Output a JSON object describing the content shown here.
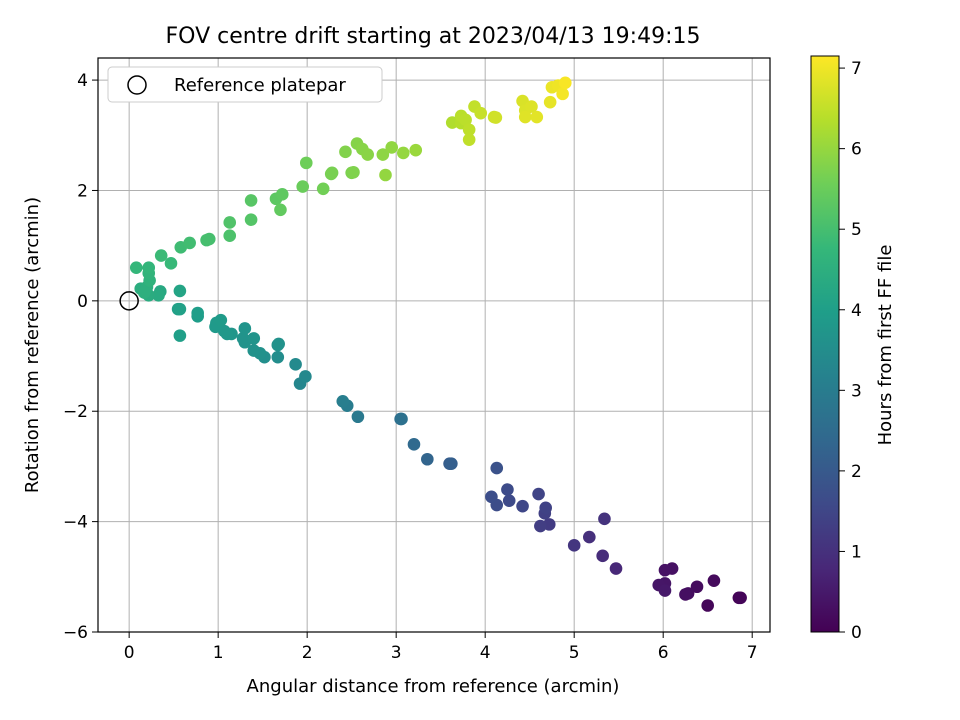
{
  "chart_data": {
    "type": "scatter",
    "title": "FOV centre drift starting at 2023/04/13 19:49:15",
    "xlabel": "Angular distance from reference (arcmin)",
    "ylabel": "Rotation from reference (arcmin)",
    "xlim": [
      -0.35,
      7.2
    ],
    "ylim": [
      -6,
      4.4
    ],
    "xticks": [
      0,
      1,
      2,
      3,
      4,
      5,
      6,
      7
    ],
    "yticks": [
      -6,
      -4,
      -2,
      0,
      2,
      4
    ],
    "grid": true,
    "legend": {
      "placement": "top-left",
      "entries": [
        "Reference platepar"
      ]
    },
    "reference_point": {
      "x": 0,
      "y": 0
    },
    "colorbar": {
      "label": "Hours from first FF file",
      "colormap": "viridis",
      "range": [
        0,
        7.15
      ],
      "ticks": [
        0,
        1,
        2,
        3,
        4,
        5,
        6,
        7
      ]
    },
    "colormap_stops": [
      "#440154",
      "#482878",
      "#3e4a89",
      "#31688e",
      "#26828e",
      "#1f9e89",
      "#35b779",
      "#6ece58",
      "#b5de2b",
      "#fde725"
    ],
    "points": [
      {
        "x": 6.85,
        "y": -5.38,
        "t": 0.05
      },
      {
        "x": 6.87,
        "y": -5.38,
        "t": 0.08
      },
      {
        "x": 6.5,
        "y": -5.52,
        "t": 0.12
      },
      {
        "x": 6.57,
        "y": -5.07,
        "t": 0.18
      },
      {
        "x": 6.38,
        "y": -5.18,
        "t": 0.22
      },
      {
        "x": 6.28,
        "y": -5.3,
        "t": 0.25
      },
      {
        "x": 6.25,
        "y": -5.32,
        "t": 0.28
      },
      {
        "x": 6.1,
        "y": -4.85,
        "t": 0.32
      },
      {
        "x": 6.02,
        "y": -4.88,
        "t": 0.35
      },
      {
        "x": 6.02,
        "y": -5.12,
        "t": 0.4
      },
      {
        "x": 5.95,
        "y": -5.15,
        "t": 0.43
      },
      {
        "x": 6.02,
        "y": -5.25,
        "t": 0.47
      },
      {
        "x": 5.47,
        "y": -4.85,
        "t": 0.8
      },
      {
        "x": 5.32,
        "y": -4.62,
        "t": 0.9
      },
      {
        "x": 5.17,
        "y": -4.28,
        "t": 0.98
      },
      {
        "x": 5.34,
        "y": -3.95,
        "t": 1.05
      },
      {
        "x": 5.0,
        "y": -4.43,
        "t": 1.12
      },
      {
        "x": 4.72,
        "y": -4.05,
        "t": 1.25
      },
      {
        "x": 4.62,
        "y": -4.08,
        "t": 1.3
      },
      {
        "x": 4.67,
        "y": -3.85,
        "t": 1.35
      },
      {
        "x": 4.68,
        "y": -3.75,
        "t": 1.4
      },
      {
        "x": 4.6,
        "y": -3.5,
        "t": 1.45
      },
      {
        "x": 4.42,
        "y": -3.72,
        "t": 1.52
      },
      {
        "x": 4.27,
        "y": -3.62,
        "t": 1.58
      },
      {
        "x": 4.25,
        "y": -3.42,
        "t": 1.62
      },
      {
        "x": 4.13,
        "y": -3.7,
        "t": 1.66
      },
      {
        "x": 4.07,
        "y": -3.55,
        "t": 1.7
      },
      {
        "x": 4.13,
        "y": -3.03,
        "t": 1.8
      },
      {
        "x": 3.6,
        "y": -2.95,
        "t": 2.1
      },
      {
        "x": 3.62,
        "y": -2.95,
        "t": 2.15
      },
      {
        "x": 3.35,
        "y": -2.87,
        "t": 2.3
      },
      {
        "x": 3.2,
        "y": -2.6,
        "t": 2.45
      },
      {
        "x": 3.05,
        "y": -2.14,
        "t": 2.6
      },
      {
        "x": 3.06,
        "y": -2.14,
        "t": 2.65
      },
      {
        "x": 2.57,
        "y": -2.1,
        "t": 2.9
      },
      {
        "x": 2.45,
        "y": -1.9,
        "t": 3.0
      },
      {
        "x": 2.4,
        "y": -1.82,
        "t": 3.05
      },
      {
        "x": 1.92,
        "y": -1.5,
        "t": 3.3
      },
      {
        "x": 1.98,
        "y": -1.37,
        "t": 3.35
      },
      {
        "x": 1.87,
        "y": -1.15,
        "t": 3.4
      },
      {
        "x": 1.67,
        "y": -1.02,
        "t": 3.5
      },
      {
        "x": 1.52,
        "y": -1.02,
        "t": 3.55
      },
      {
        "x": 1.47,
        "y": -0.95,
        "t": 3.6
      },
      {
        "x": 1.4,
        "y": -0.9,
        "t": 3.62
      },
      {
        "x": 1.68,
        "y": -0.78,
        "t": 3.6
      },
      {
        "x": 1.67,
        "y": -0.8,
        "t": 3.62
      },
      {
        "x": 1.3,
        "y": -0.75,
        "t": 3.65
      },
      {
        "x": 1.28,
        "y": -0.68,
        "t": 3.67
      },
      {
        "x": 1.4,
        "y": -0.68,
        "t": 3.68
      },
      {
        "x": 1.3,
        "y": -0.5,
        "t": 3.7
      },
      {
        "x": 1.15,
        "y": -0.6,
        "t": 3.75
      },
      {
        "x": 1.1,
        "y": -0.6,
        "t": 3.78
      },
      {
        "x": 1.07,
        "y": -0.55,
        "t": 3.8
      },
      {
        "x": 0.97,
        "y": -0.47,
        "t": 3.85
      },
      {
        "x": 0.98,
        "y": -0.4,
        "t": 3.87
      },
      {
        "x": 1.03,
        "y": -0.35,
        "t": 3.9
      },
      {
        "x": 0.77,
        "y": -0.28,
        "t": 3.95
      },
      {
        "x": 0.77,
        "y": -0.22,
        "t": 3.98
      },
      {
        "x": 0.57,
        "y": -0.63,
        "t": 4.0
      },
      {
        "x": 0.55,
        "y": -0.15,
        "t": 4.05
      },
      {
        "x": 0.57,
        "y": -0.15,
        "t": 4.08
      },
      {
        "x": 0.57,
        "y": 0.18,
        "t": 4.15
      },
      {
        "x": 0.35,
        "y": 0.17,
        "t": 4.3
      },
      {
        "x": 0.33,
        "y": 0.1,
        "t": 4.35
      },
      {
        "x": 0.22,
        "y": 0.1,
        "t": 4.4
      },
      {
        "x": 0.13,
        "y": 0.22,
        "t": 4.45
      },
      {
        "x": 0.2,
        "y": 0.25,
        "t": 4.5
      },
      {
        "x": 0.17,
        "y": 0.15,
        "t": 4.52
      },
      {
        "x": 0.23,
        "y": 0.37,
        "t": 4.6
      },
      {
        "x": 0.22,
        "y": 0.5,
        "t": 4.65
      },
      {
        "x": 0.22,
        "y": 0.6,
        "t": 4.7
      },
      {
        "x": 0.08,
        "y": 0.6,
        "t": 4.72
      },
      {
        "x": 0.47,
        "y": 0.68,
        "t": 4.8
      },
      {
        "x": 0.36,
        "y": 0.82,
        "t": 4.85
      },
      {
        "x": 0.58,
        "y": 0.97,
        "t": 4.9
      },
      {
        "x": 0.68,
        "y": 1.05,
        "t": 4.95
      },
      {
        "x": 0.87,
        "y": 1.1,
        "t": 5.0
      },
      {
        "x": 0.9,
        "y": 1.12,
        "t": 5.02
      },
      {
        "x": 1.13,
        "y": 1.18,
        "t": 5.1
      },
      {
        "x": 1.13,
        "y": 1.42,
        "t": 5.15
      },
      {
        "x": 1.37,
        "y": 1.47,
        "t": 5.2
      },
      {
        "x": 1.37,
        "y": 1.82,
        "t": 5.25
      },
      {
        "x": 1.65,
        "y": 1.85,
        "t": 5.32
      },
      {
        "x": 1.72,
        "y": 1.93,
        "t": 5.35
      },
      {
        "x": 1.7,
        "y": 1.65,
        "t": 5.4
      },
      {
        "x": 1.95,
        "y": 2.07,
        "t": 5.5
      },
      {
        "x": 1.99,
        "y": 2.5,
        "t": 5.55
      },
      {
        "x": 2.18,
        "y": 2.03,
        "t": 5.6
      },
      {
        "x": 2.27,
        "y": 2.3,
        "t": 5.65
      },
      {
        "x": 2.28,
        "y": 2.32,
        "t": 5.67
      },
      {
        "x": 2.5,
        "y": 2.32,
        "t": 5.72
      },
      {
        "x": 2.52,
        "y": 2.33,
        "t": 5.75
      },
      {
        "x": 2.43,
        "y": 2.7,
        "t": 5.78
      },
      {
        "x": 2.56,
        "y": 2.85,
        "t": 5.82
      },
      {
        "x": 2.62,
        "y": 2.75,
        "t": 5.85
      },
      {
        "x": 2.68,
        "y": 2.65,
        "t": 5.88
      },
      {
        "x": 2.85,
        "y": 2.65,
        "t": 5.92
      },
      {
        "x": 2.95,
        "y": 2.78,
        "t": 5.95
      },
      {
        "x": 2.88,
        "y": 2.28,
        "t": 5.98
      },
      {
        "x": 3.08,
        "y": 2.68,
        "t": 6.0
      },
      {
        "x": 3.22,
        "y": 2.73,
        "t": 6.05
      },
      {
        "x": 3.63,
        "y": 3.23,
        "t": 6.3
      },
      {
        "x": 3.73,
        "y": 3.22,
        "t": 6.35
      },
      {
        "x": 3.73,
        "y": 3.35,
        "t": 6.4
      },
      {
        "x": 3.78,
        "y": 3.28,
        "t": 6.42
      },
      {
        "x": 3.82,
        "y": 3.1,
        "t": 6.45
      },
      {
        "x": 3.82,
        "y": 2.92,
        "t": 6.48
      },
      {
        "x": 3.88,
        "y": 3.52,
        "t": 6.5
      },
      {
        "x": 3.95,
        "y": 3.4,
        "t": 6.55
      },
      {
        "x": 4.1,
        "y": 3.33,
        "t": 6.62
      },
      {
        "x": 4.12,
        "y": 3.32,
        "t": 6.65
      },
      {
        "x": 4.42,
        "y": 3.62,
        "t": 6.75
      },
      {
        "x": 4.45,
        "y": 3.45,
        "t": 6.78
      },
      {
        "x": 4.52,
        "y": 3.52,
        "t": 6.8
      },
      {
        "x": 4.45,
        "y": 3.33,
        "t": 6.82
      },
      {
        "x": 4.58,
        "y": 3.33,
        "t": 6.85
      },
      {
        "x": 4.73,
        "y": 3.6,
        "t": 6.9
      },
      {
        "x": 4.75,
        "y": 3.87,
        "t": 6.95
      },
      {
        "x": 4.82,
        "y": 3.9,
        "t": 7.0
      },
      {
        "x": 4.87,
        "y": 3.75,
        "t": 7.05
      },
      {
        "x": 4.9,
        "y": 3.95,
        "t": 7.1
      }
    ]
  }
}
